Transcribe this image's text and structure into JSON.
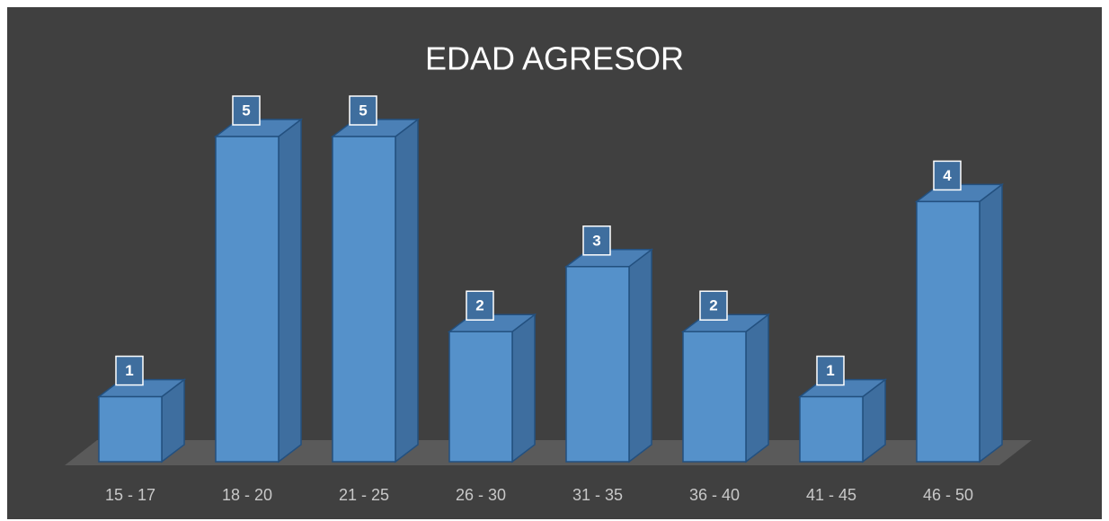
{
  "chart_data": {
    "type": "bar3d",
    "title": "EDAD AGRESOR",
    "categories": [
      "15 - 17",
      "18 - 20",
      "21 - 25",
      "26 - 30",
      "31 - 35",
      "36 - 40",
      "41 - 45",
      "46 - 50"
    ],
    "values": [
      1,
      5,
      5,
      2,
      3,
      2,
      1,
      4
    ],
    "color": "#5591ca"
  }
}
